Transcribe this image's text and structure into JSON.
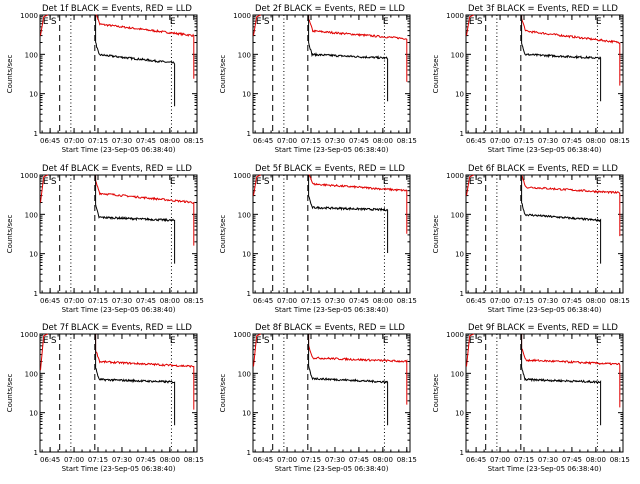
{
  "colors": {
    "events": "#000000",
    "lld": "#e00000",
    "axis": "#000000",
    "background": "#ffffff"
  },
  "shared": {
    "xlabel": "Start Time (23-Sep-05 06:38:40)",
    "ylabel": "Counts/sec",
    "x_ticks": [
      "06:45",
      "07:00",
      "07:15",
      "07:30",
      "07:45",
      "08:00",
      "08:15"
    ],
    "y_ticks": [
      "1",
      "10",
      "100",
      "1000"
    ],
    "markers": [
      "E",
      "S",
      "E"
    ]
  },
  "chart_data": [
    {
      "type": "line",
      "title": "Det 1f BLACK = Events, RED = LLD",
      "yscale": "log",
      "ylim": [
        1,
        1000
      ],
      "x_range": [
        "06:38:40",
        "08:17:00"
      ],
      "series": [
        {
          "color": "#e00000",
          "start": "07:13:30",
          "end": "08:15:00",
          "level_start": 600,
          "level_end": 300,
          "pre": [
            {
              "t": "06:39",
              "v": 300
            },
            {
              "t": "06:41",
              "v": 900
            }
          ]
        },
        {
          "color": "#000000",
          "start": "07:13:30",
          "end": "08:03:00",
          "level_start": 100,
          "level_end": 60
        }
      ],
      "vlines": [
        {
          "t": "06:51",
          "style": "dashed"
        },
        {
          "t": "06:58",
          "style": "dotted"
        },
        {
          "t": "07:13",
          "style": "dashed"
        },
        {
          "t": "08:01",
          "style": "dotted"
        }
      ]
    },
    {
      "type": "line",
      "title": "Det 2f BLACK = Events, RED = LLD",
      "yscale": "log",
      "ylim": [
        1,
        1000
      ],
      "x_range": [
        "06:38:40",
        "08:17:00"
      ],
      "series": [
        {
          "color": "#e00000",
          "start": "07:13:30",
          "end": "08:15:00",
          "level_start": 400,
          "level_end": 250,
          "pre": [
            {
              "t": "06:39",
              "v": 300
            },
            {
              "t": "06:41",
              "v": 900
            }
          ]
        },
        {
          "color": "#000000",
          "start": "07:13:30",
          "end": "08:03:00",
          "level_start": 100,
          "level_end": 80
        }
      ],
      "vlines": [
        {
          "t": "06:51",
          "style": "dashed"
        },
        {
          "t": "06:58",
          "style": "dotted"
        },
        {
          "t": "07:13",
          "style": "dashed"
        },
        {
          "t": "08:01",
          "style": "dotted"
        }
      ]
    },
    {
      "type": "line",
      "title": "Det 3f BLACK = Events, RED = LLD",
      "yscale": "log",
      "ylim": [
        1,
        1000
      ],
      "x_range": [
        "06:38:40",
        "08:17:00"
      ],
      "series": [
        {
          "color": "#e00000",
          "start": "07:13:30",
          "end": "08:15:00",
          "level_start": 400,
          "level_end": 200,
          "pre": [
            {
              "t": "06:39",
              "v": 300
            },
            {
              "t": "06:41",
              "v": 900
            }
          ]
        },
        {
          "color": "#000000",
          "start": "07:13:30",
          "end": "08:03:00",
          "level_start": 100,
          "level_end": 80
        }
      ],
      "vlines": [
        {
          "t": "06:51",
          "style": "dashed"
        },
        {
          "t": "06:58",
          "style": "dotted"
        },
        {
          "t": "07:13",
          "style": "dashed"
        },
        {
          "t": "08:01",
          "style": "dotted"
        }
      ]
    },
    {
      "type": "line",
      "title": "Det 4f BLACK = Events, RED = LLD",
      "yscale": "log",
      "ylim": [
        1,
        1000
      ],
      "x_range": [
        "06:38:40",
        "08:17:00"
      ],
      "series": [
        {
          "color": "#e00000",
          "start": "07:13:30",
          "end": "08:15:00",
          "level_start": 350,
          "level_end": 200,
          "pre": [
            {
              "t": "06:39",
              "v": 200
            },
            {
              "t": "06:41",
              "v": 900
            }
          ]
        },
        {
          "color": "#000000",
          "start": "07:13:30",
          "end": "08:03:00",
          "level_start": 85,
          "level_end": 70
        }
      ],
      "vlines": [
        {
          "t": "06:51",
          "style": "dashed"
        },
        {
          "t": "06:58",
          "style": "dotted"
        },
        {
          "t": "07:13",
          "style": "dashed"
        },
        {
          "t": "08:01",
          "style": "dotted"
        }
      ]
    },
    {
      "type": "line",
      "title": "Det 5f BLACK = Events, RED = LLD",
      "yscale": "log",
      "ylim": [
        1,
        1000
      ],
      "x_range": [
        "06:38:40",
        "08:17:00"
      ],
      "series": [
        {
          "color": "#e00000",
          "start": "07:13:30",
          "end": "08:15:00",
          "level_start": 600,
          "level_end": 400,
          "pre": [
            {
              "t": "06:39",
              "v": 300
            },
            {
              "t": "06:41",
              "v": 900
            }
          ]
        },
        {
          "color": "#000000",
          "start": "07:13:30",
          "end": "08:03:00",
          "level_start": 150,
          "level_end": 130
        }
      ],
      "vlines": [
        {
          "t": "06:51",
          "style": "dashed"
        },
        {
          "t": "06:58",
          "style": "dotted"
        },
        {
          "t": "07:13",
          "style": "dashed"
        },
        {
          "t": "08:01",
          "style": "dotted"
        }
      ]
    },
    {
      "type": "line",
      "title": "Det 6f BLACK = Events, RED = LLD",
      "yscale": "log",
      "ylim": [
        1,
        1000
      ],
      "x_range": [
        "06:38:40",
        "08:17:00"
      ],
      "series": [
        {
          "color": "#e00000",
          "start": "07:13:30",
          "end": "08:15:00",
          "level_start": 500,
          "level_end": 350,
          "pre": [
            {
              "t": "06:39",
              "v": 300
            },
            {
              "t": "06:41",
              "v": 900
            }
          ]
        },
        {
          "color": "#000000",
          "start": "07:13:30",
          "end": "08:03:00",
          "level_start": 100,
          "level_end": 70
        }
      ],
      "vlines": [
        {
          "t": "06:51",
          "style": "dashed"
        },
        {
          "t": "06:58",
          "style": "dotted"
        },
        {
          "t": "07:13",
          "style": "dashed"
        },
        {
          "t": "08:01",
          "style": "dotted"
        }
      ]
    },
    {
      "type": "line",
      "title": "Det 7f BLACK = Events, RED = LLD",
      "yscale": "log",
      "ylim": [
        1,
        1000
      ],
      "x_range": [
        "06:38:40",
        "08:17:00"
      ],
      "series": [
        {
          "color": "#e00000",
          "start": "07:13:30",
          "end": "08:15:00",
          "level_start": 200,
          "level_end": 150,
          "pre": [
            {
              "t": "06:39",
              "v": 120
            },
            {
              "t": "06:41",
              "v": 900
            }
          ]
        },
        {
          "color": "#000000",
          "start": "07:13:30",
          "end": "08:03:00",
          "level_start": 70,
          "level_end": 60
        }
      ],
      "vlines": [
        {
          "t": "06:51",
          "style": "dashed"
        },
        {
          "t": "06:58",
          "style": "dotted"
        },
        {
          "t": "07:13",
          "style": "dashed"
        },
        {
          "t": "08:01",
          "style": "dotted"
        }
      ]
    },
    {
      "type": "line",
      "title": "Det 8f BLACK = Events, RED = LLD",
      "yscale": "log",
      "ylim": [
        1,
        1000
      ],
      "x_range": [
        "06:38:40",
        "08:17:00"
      ],
      "series": [
        {
          "color": "#e00000",
          "start": "07:13:30",
          "end": "08:15:00",
          "level_start": 250,
          "level_end": 200,
          "pre": [
            {
              "t": "06:39",
              "v": 150
            },
            {
              "t": "06:41",
              "v": 900
            }
          ]
        },
        {
          "color": "#000000",
          "start": "07:13:30",
          "end": "08:03:00",
          "level_start": 75,
          "level_end": 60
        }
      ],
      "vlines": [
        {
          "t": "06:51",
          "style": "dashed"
        },
        {
          "t": "06:58",
          "style": "dotted"
        },
        {
          "t": "07:13",
          "style": "dashed"
        },
        {
          "t": "08:01",
          "style": "dotted"
        }
      ]
    },
    {
      "type": "line",
      "title": "Det 9f BLACK = Events, RED = LLD",
      "yscale": "log",
      "ylim": [
        1,
        1000
      ],
      "x_range": [
        "06:38:40",
        "08:17:00"
      ],
      "series": [
        {
          "color": "#e00000",
          "start": "07:13:30",
          "end": "08:15:00",
          "level_start": 220,
          "level_end": 170,
          "pre": [
            {
              "t": "06:39",
              "v": 150
            },
            {
              "t": "06:41",
              "v": 900
            }
          ]
        },
        {
          "color": "#000000",
          "start": "07:13:30",
          "end": "08:03:00",
          "level_start": 70,
          "level_end": 60
        }
      ],
      "vlines": [
        {
          "t": "06:51",
          "style": "dashed"
        },
        {
          "t": "06:58",
          "style": "dotted"
        },
        {
          "t": "07:13",
          "style": "dashed"
        },
        {
          "t": "08:01",
          "style": "dotted"
        }
      ]
    }
  ]
}
